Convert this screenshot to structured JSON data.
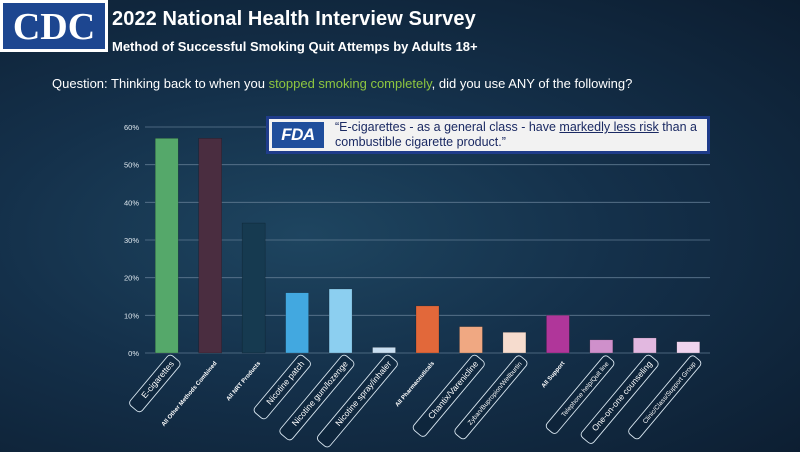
{
  "header": {
    "logo_text": "CDC",
    "title": "2022 National Health Interview Survey",
    "subtitle": "Method of Successful Smoking Quit Attemps by Adults 18+"
  },
  "question": {
    "prefix": "Question:  Thinking back to when you ",
    "highlight": "stopped smoking completely",
    "suffix": ",  did you use ANY of the following?"
  },
  "quote": {
    "badge": "FDA",
    "part1": "“E-cigarettes - as a general class - have ",
    "underlined": "markedly less risk",
    "part2": " than a combustible cigarette product.”"
  },
  "chart_data": {
    "type": "bar",
    "title": "Method of Successful Smoking Quit Attemps by Adults 18+",
    "xlabel": "",
    "ylabel": "",
    "ylim": [
      0,
      60
    ],
    "yticks": [
      "0%",
      "10%",
      "20%",
      "30%",
      "40%",
      "50%",
      "60%"
    ],
    "categories": [
      "E-cigarettes",
      "All Other Methods Combined",
      "All NRT Products",
      "Nicotine patch",
      "Nicotine gum/lozenge",
      "Nicotine spray/inhaler",
      "All Pharmaceuticals",
      "Chantix/Varenicline",
      "Zyban/Bupropion/Wellburtin",
      "All Support",
      "Telephone help/Quit line",
      "One-on-one counseling",
      "Clinic/Class/Support Group"
    ],
    "values": [
      57,
      57,
      34.5,
      16,
      17,
      1.5,
      12.5,
      7,
      5.5,
      10,
      3.5,
      4,
      3
    ],
    "colors": [
      "#55a86a",
      "#4a2d40",
      "#163a50",
      "#42a8e0",
      "#8ccff0",
      "#c8def0",
      "#e2683a",
      "#f0a882",
      "#f6dcce",
      "#b0369a",
      "#cf90cb",
      "#e2b8e0",
      "#f0d4ee"
    ],
    "boxed_labels": [
      true,
      false,
      false,
      true,
      true,
      true,
      false,
      true,
      true,
      false,
      true,
      true,
      true
    ],
    "grid": true
  }
}
